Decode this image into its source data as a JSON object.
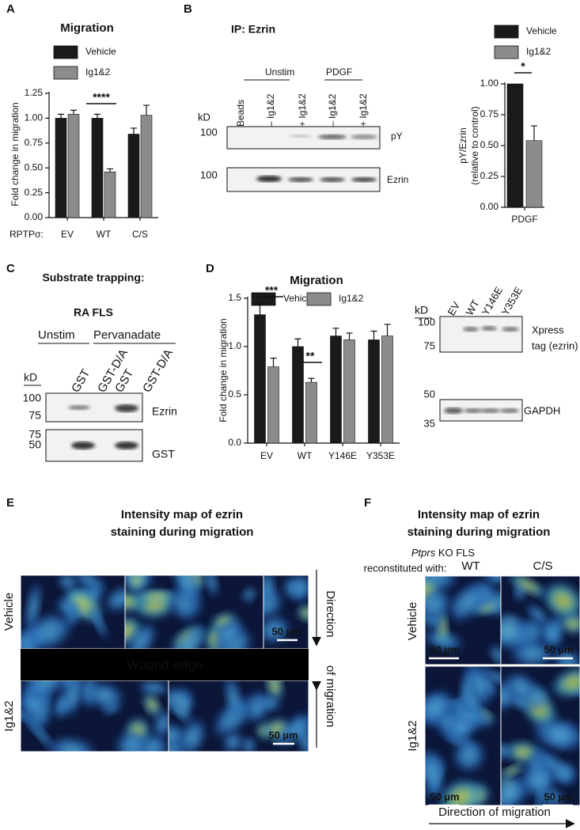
{
  "panel_labels": [
    "A",
    "B",
    "C",
    "D",
    "E",
    "F"
  ],
  "chart_data": [
    {
      "type": "bar",
      "title": "Migration",
      "categories": [
        "EV",
        "WT",
        "C/S"
      ],
      "xlabel": "RPTPσ:",
      "ylabel": [
        "Fold change in migration"
      ],
      "series": [
        {
          "name": "Vehicle",
          "color": "#1a1a1a",
          "values": [
            1.0,
            1.0,
            0.84
          ],
          "errors": [
            0.04,
            0.04,
            0.06
          ]
        },
        {
          "name": "Ig1&2",
          "color": "#8c8c8c",
          "values": [
            1.04,
            0.46,
            1.03
          ],
          "errors": [
            0.04,
            0.03,
            0.1
          ]
        }
      ],
      "ylim": [
        0,
        1.25
      ],
      "yticks": [
        {
          "value": 0,
          "label": "0.00"
        },
        {
          "value": 0.25,
          "label": "0.25"
        },
        {
          "value": 0.5,
          "label": "0.50"
        },
        {
          "value": 0.75,
          "label": "0.75"
        },
        {
          "value": 1,
          "label": "1.00"
        },
        {
          "value": 1.25,
          "label": "1.25"
        }
      ],
      "annotations": [
        "****"
      ]
    },
    {
      "type": "bar",
      "categories": [
        "PDGF"
      ],
      "ylabel": [
        "pY/Ezrin",
        "(relative to control)"
      ],
      "series": [
        {
          "name": "Vehicle",
          "color": "#1a1a1a",
          "values": [
            1.0
          ]
        },
        {
          "name": "Ig1&2",
          "color": "#8c8c8c",
          "values": [
            0.54
          ],
          "errors": [
            0.12
          ]
        }
      ],
      "ylim": [
        0,
        1
      ],
      "yticks": [
        {
          "value": 0,
          "label": "0.00"
        },
        {
          "value": 0.25,
          "label": "0.25"
        },
        {
          "value": 0.5,
          "label": "0.50"
        },
        {
          "value": 0.75,
          "label": "0.75"
        },
        {
          "value": 1,
          "label": "1.00"
        }
      ],
      "annotations": [
        "*"
      ]
    },
    {
      "type": "bar",
      "title": "Migration",
      "categories": [
        "EV",
        "WT",
        "Y146E",
        "Y353E"
      ],
      "ylabel": [
        "Fold change in migration"
      ],
      "series": [
        {
          "name": "Vehicle",
          "color": "#1a1a1a",
          "values": [
            1.33,
            1.0,
            1.11,
            1.07
          ],
          "errors": [
            0.11,
            0.08,
            0.08,
            0.09
          ]
        },
        {
          "name": "Ig1&2",
          "color": "#8c8c8c",
          "values": [
            0.79,
            0.63,
            1.07,
            1.11
          ],
          "errors": [
            0.09,
            0.04,
            0.07,
            0.12
          ]
        }
      ],
      "ylim": [
        0,
        1.5
      ],
      "yticks": [
        {
          "value": 0,
          "label": "0.0"
        },
        {
          "value": 0.5,
          "label": "0.5"
        },
        {
          "value": 1,
          "label": "1.0"
        },
        {
          "value": 1.5,
          "label": "1.5"
        }
      ],
      "annotations": [
        "***",
        "**"
      ]
    }
  ],
  "blot_b": {
    "title": "IP: Ezrin",
    "groups": [
      "Unstim",
      "PDGF"
    ],
    "lanes": [
      "Beads",
      "– Ig1&2",
      "+ Ig1&2",
      "– Ig1&2",
      "+ Ig1&2"
    ],
    "kd_label": "kD",
    "rows": [
      {
        "markers": [
          "100"
        ],
        "label": "pY"
      },
      {
        "markers": [
          "100"
        ],
        "label": "Ezrin"
      }
    ]
  },
  "blot_c": {
    "title": "Substrate trapping:",
    "subtitle": "RA FLS",
    "groups": [
      "Unstim",
      "Pervanadate"
    ],
    "lanes": [
      "GST",
      "GST-D/A",
      "GST",
      "GST-D/A"
    ],
    "kd_label": "kD",
    "rows": [
      {
        "markers": [
          "100",
          "75"
        ],
        "label": "Ezrin"
      },
      {
        "markers": [
          "75",
          "50"
        ],
        "label": "GST"
      }
    ]
  },
  "blot_d": {
    "kd_label": "kD",
    "lanes": [
      "EV",
      "WT",
      "Y146E",
      "Y353E"
    ],
    "rows": [
      {
        "markers": [
          "100",
          "75"
        ],
        "label": [
          "Xpress",
          "tag (ezrin)"
        ]
      },
      {
        "markers": [
          "50",
          "35"
        ],
        "label": [
          "GAPDH"
        ]
      }
    ]
  },
  "panel_e": {
    "title": [
      "Intensity map of ezrin",
      "staining during migration"
    ],
    "rows": [
      "Vehicle",
      "Ig1&2"
    ],
    "wound_edge": "Wound edge",
    "direction": [
      "Direction",
      "of migration"
    ],
    "scale_bars": [
      "50 µm",
      "50 µm"
    ]
  },
  "panel_f": {
    "title": [
      "Intensity map of ezrin",
      "staining during migration"
    ],
    "strain": "Ptprs",
    "strain_suffix": " KO FLS",
    "reconstituted": "reconstituted with:",
    "columns": [
      "WT",
      "C/S"
    ],
    "rows": [
      "Vehicle",
      "Ig1&2"
    ],
    "scale_bars": [
      "50 µm",
      "50 µm",
      "50 µm",
      "50 µm"
    ],
    "direction": "Direction of migration"
  }
}
